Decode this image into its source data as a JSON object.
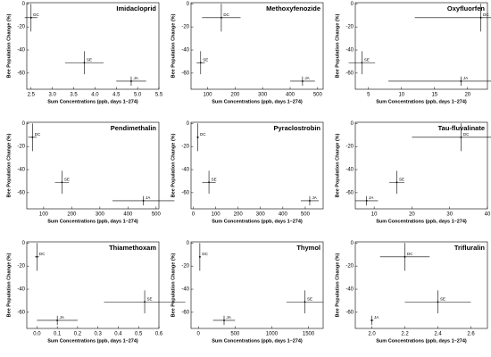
{
  "chart_data": [
    {
      "type": "scatter",
      "title": "Imidacloprid",
      "xlabel": "Sum Concentrations (ppb, days 1–274)",
      "ylabel": "Bee Population Change (%)",
      "xlim": [
        2.4,
        5.5
      ],
      "xticks": [
        2.5,
        {
          "value": 3,
          "label": "3.0"
        },
        3.5,
        {
          "value": 4,
          "label": "4.0"
        },
        4.5,
        {
          "value": 5,
          "label": "5.0"
        },
        5.5
      ],
      "ylim": [
        -74,
        1
      ],
      "yticks": [
        -60,
        -40,
        -20,
        0
      ],
      "labels": [
        "DC",
        "SE",
        "JA"
      ],
      "x": [
        2.5,
        3.75,
        4.85
      ],
      "values": [
        -12,
        -51,
        -67
      ],
      "xerr": [
        0.15,
        0.45,
        0.35
      ],
      "yerr": [
        12,
        10,
        4
      ]
    },
    {
      "type": "scatter",
      "title": "Methoxyfenozide",
      "xlabel": "Sum Concentrations (ppb, days 1–274)",
      "ylabel": "Bee Population Change (%)",
      "xlim": [
        40,
        520
      ],
      "xticks": [
        100,
        200,
        300,
        400,
        500
      ],
      "ylim": [
        -74,
        1
      ],
      "yticks": [
        -60,
        -40,
        -20,
        0
      ],
      "labels": [
        "DC",
        "SE",
        "JA"
      ],
      "x": [
        150,
        75,
        445
      ],
      "values": [
        -12,
        -51,
        -67
      ],
      "xerr": [
        70,
        15,
        45
      ],
      "yerr": [
        12,
        10,
        4
      ]
    },
    {
      "type": "scatter",
      "title": "Oxyfluorfen",
      "xlabel": "Sum Concentrations (ppb, days 1–274)",
      "ylabel": "Bee Population Change (%)",
      "xlim": [
        3,
        23
      ],
      "xticks": [
        5,
        10,
        15,
        20
      ],
      "ylim": [
        -74,
        1
      ],
      "yticks": [
        -60,
        -40,
        -20,
        0
      ],
      "labels": [
        "DC",
        "SE",
        "JA"
      ],
      "x": [
        22,
        4,
        19
      ],
      "values": [
        -12,
        -51,
        -67
      ],
      "xerr": [
        10,
        2,
        11
      ],
      "yerr": [
        12,
        10,
        4
      ]
    },
    {
      "type": "scatter",
      "title": "Pendimethalin",
      "xlabel": "Sum Concentrations (ppb, days 1–274)",
      "ylabel": "Bee Population Change (%)",
      "xlim": [
        40,
        510
      ],
      "xticks": [
        100,
        200,
        300,
        400,
        500
      ],
      "ylim": [
        -74,
        1
      ],
      "yticks": [
        -60,
        -40,
        -20,
        0
      ],
      "labels": [
        "DC",
        "SE",
        "JA"
      ],
      "x": [
        60,
        165,
        455
      ],
      "values": [
        -12,
        -51,
        -67
      ],
      "xerr": [
        15,
        25,
        110
      ],
      "yerr": [
        12,
        10,
        4
      ]
    },
    {
      "type": "scatter",
      "title": "Pyraclostrobin",
      "xlabel": "Sum Concentrations (ppb, days 1–274)",
      "ylabel": "Bee Population Change (%)",
      "xlim": [
        -10,
        580
      ],
      "xticks": [
        0,
        100,
        200,
        300,
        400,
        500
      ],
      "ylim": [
        -74,
        1
      ],
      "yticks": [
        -60,
        -40,
        -20,
        0
      ],
      "labels": [
        "DC",
        "SE",
        "JA"
      ],
      "x": [
        20,
        70,
        520
      ],
      "values": [
        -12,
        -51,
        -67
      ],
      "xerr": [
        5,
        30,
        40
      ],
      "yerr": [
        12,
        10,
        4
      ]
    },
    {
      "type": "scatter",
      "title": "Tau-fluvalinate",
      "xlabel": "Sum Concentrations (ppb, days 1–274)",
      "ylabel": "Bee Population Change (%)",
      "xlim": [
        5,
        40
      ],
      "xticks": [
        10,
        20,
        30,
        40
      ],
      "ylim": [
        -74,
        1
      ],
      "yticks": [
        -60,
        -40,
        -20,
        0
      ],
      "labels": [
        "DC",
        "SE",
        "JA"
      ],
      "x": [
        33,
        16,
        8
      ],
      "values": [
        -12,
        -51,
        -67
      ],
      "xerr": [
        13,
        2,
        3
      ],
      "yerr": [
        12,
        10,
        4
      ]
    },
    {
      "type": "scatter",
      "title": "Thiamethoxam",
      "xlabel": "Sum Concentrations (ppb, days 1–274)",
      "ylabel": "Bee Population Change (%)",
      "xlim": [
        -0.05,
        0.6
      ],
      "xticks": [
        {
          "value": 0,
          "label": "0.0"
        },
        0.1,
        0.2,
        0.3,
        0.4,
        0.5,
        0.6
      ],
      "ylim": [
        -74,
        1
      ],
      "yticks": [
        -60,
        -40,
        -20,
        0
      ],
      "labels": [
        "DC",
        "JA",
        "SE"
      ],
      "x": [
        0.0,
        0.1,
        0.53
      ],
      "values": [
        -12,
        -67,
        -51
      ],
      "xerr": [
        0.01,
        0.1,
        0.2
      ],
      "yerr": [
        12,
        4,
        10
      ]
    },
    {
      "type": "scatter",
      "title": "Thymol",
      "xlabel": "Sum Concentrations (ppb, days 1–274)",
      "ylabel": "Bee Population Change (%)",
      "xlim": [
        -100,
        1700
      ],
      "xticks": [
        0,
        500,
        1000,
        1500
      ],
      "ylim": [
        -74,
        1
      ],
      "yticks": [
        -60,
        -40,
        -20,
        0
      ],
      "labels": [
        "DC",
        "JA",
        "SE"
      ],
      "x": [
        20,
        350,
        1450
      ],
      "values": [
        -12,
        -67,
        -51
      ],
      "xerr": [
        10,
        150,
        250
      ],
      "yerr": [
        12,
        4,
        10
      ]
    },
    {
      "type": "scatter",
      "title": "Trifluralin",
      "xlabel": "Sum Concentrations (ppb, days 1–274)",
      "ylabel": "Bee Population Change (%)",
      "xlim": [
        1.9,
        2.7
      ],
      "xticks": [
        {
          "value": 2,
          "label": "2.0"
        },
        2.2,
        2.4,
        2.6
      ],
      "ylim": [
        -74,
        1
      ],
      "yticks": [
        -60,
        -40,
        -20,
        0
      ],
      "labels": [
        "DC",
        "SE",
        "JA"
      ],
      "x": [
        2.2,
        2.4,
        2.0
      ],
      "values": [
        -12,
        -51,
        -67
      ],
      "xerr": [
        0.15,
        0.2,
        0.01
      ],
      "yerr": [
        12,
        10,
        4
      ]
    }
  ]
}
